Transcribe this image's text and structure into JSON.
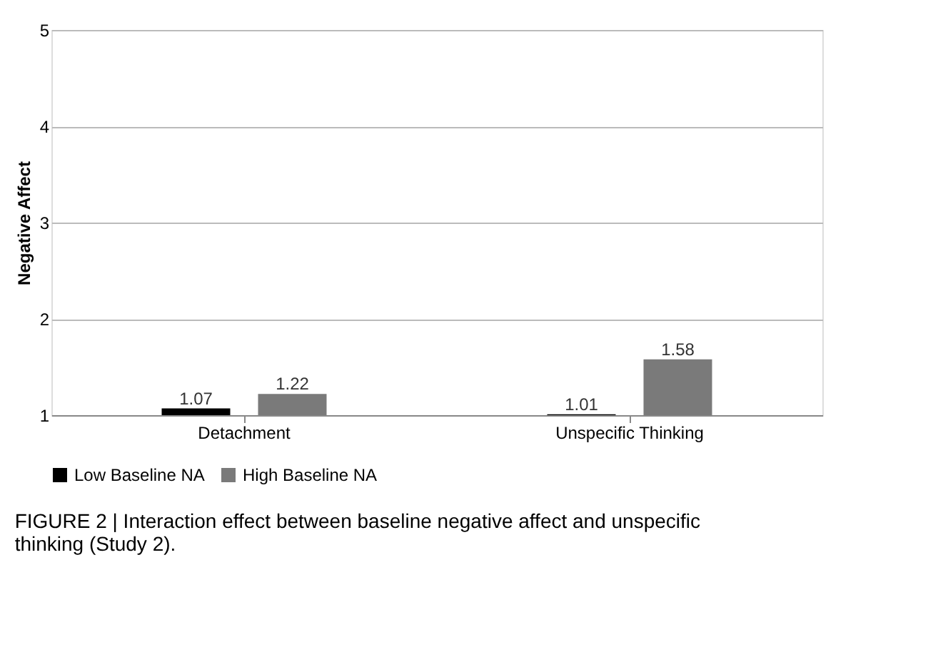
{
  "chart_data": {
    "type": "bar",
    "ylabel": "Negative Affect",
    "categories": [
      "Detachment",
      "Unspecific Thinking"
    ],
    "series": [
      {
        "name": "Low Baseline NA",
        "color": "#000000",
        "values": [
          1.07,
          1.01
        ]
      },
      {
        "name": "High Baseline NA",
        "color": "#7a7a7a",
        "values": [
          1.22,
          1.58
        ]
      }
    ],
    "ylim": [
      1,
      5
    ],
    "yticks": [
      1,
      2,
      3,
      4,
      5
    ],
    "grid": "y",
    "data_labels": true,
    "legend": "bottom",
    "annotations": [
      "FIGURE 2 | Interaction effect between baseline negative affect and unspecific thinking (Study 2)."
    ]
  }
}
